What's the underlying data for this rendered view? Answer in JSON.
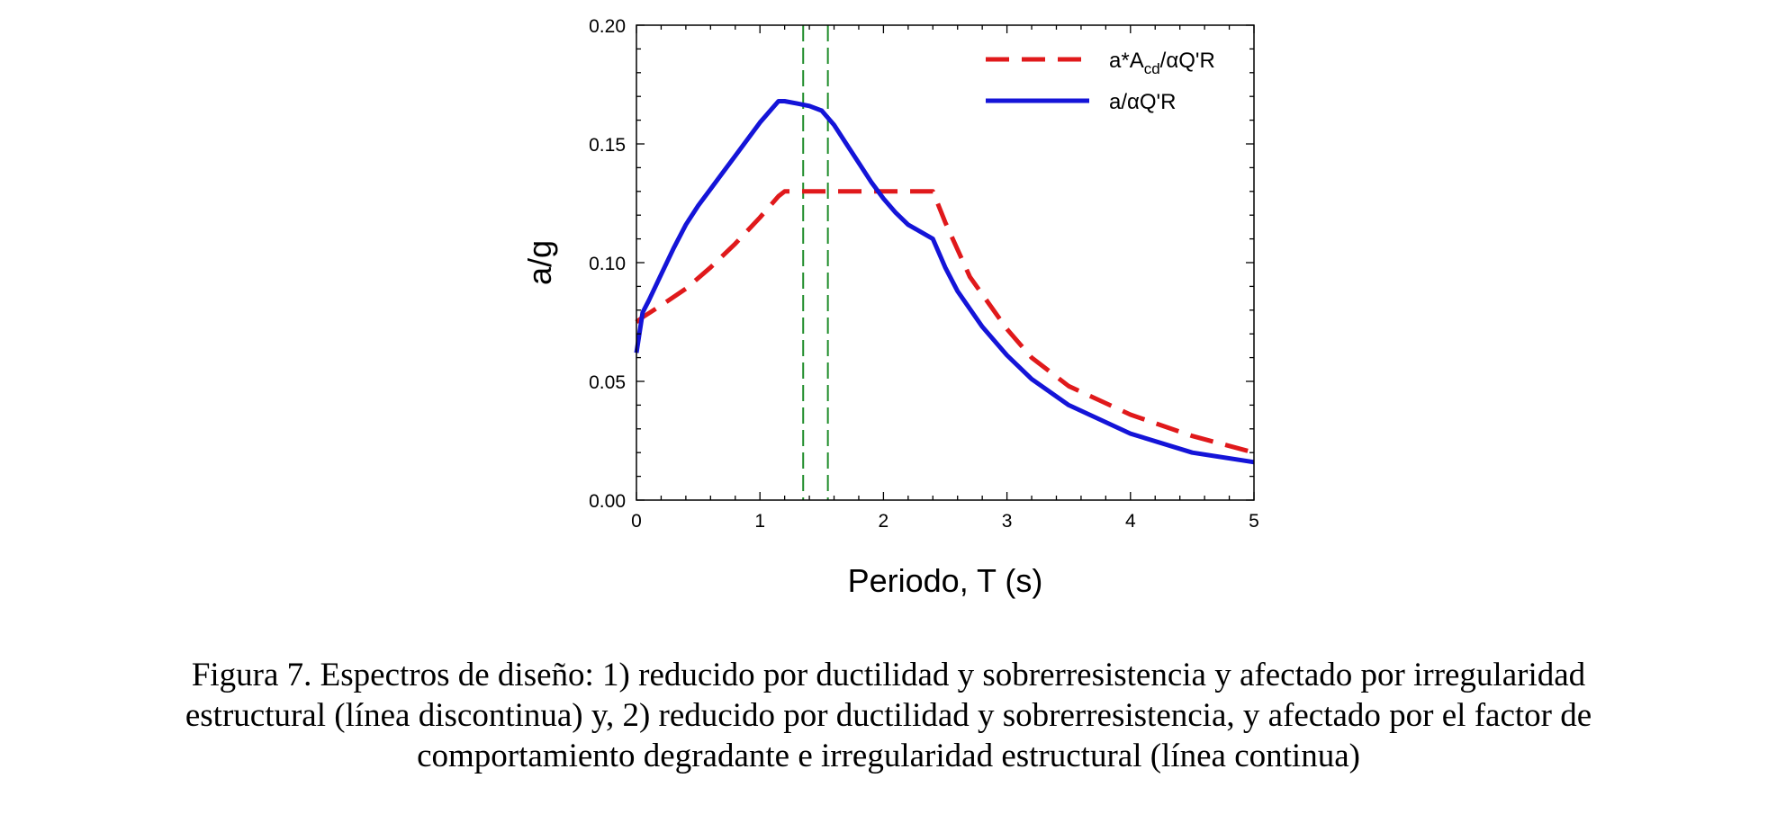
{
  "chart_data": {
    "type": "line",
    "xlabel": "Periodo, T (s)",
    "ylabel": "a/g",
    "xlim": [
      0,
      5
    ],
    "ylim": [
      0,
      0.2
    ],
    "x_ticks": [
      0,
      1,
      2,
      3,
      4,
      5
    ],
    "x_tick_labels": [
      "0",
      "1",
      "2",
      "3",
      "4",
      "5"
    ],
    "y_ticks": [
      0,
      0.05,
      0.1,
      0.15,
      0.2
    ],
    "y_tick_labels": [
      "0.00",
      "0.05",
      "0.10",
      "0.15",
      "0.20"
    ],
    "legend_position": "top-right",
    "series": [
      {
        "name": "a*Acd/αQ'R",
        "legend_parts": [
          "a*A",
          "cd",
          "/αQ'R"
        ],
        "style": "dashed",
        "color": "#e0191b",
        "x": [
          0.0,
          0.05,
          0.2,
          0.4,
          0.6,
          0.8,
          1.0,
          1.15,
          1.2,
          1.5,
          2.0,
          2.2,
          2.4,
          2.5,
          2.7,
          3.0,
          3.2,
          3.5,
          4.0,
          4.5,
          5.0
        ],
        "y": [
          0.075,
          0.077,
          0.082,
          0.089,
          0.098,
          0.108,
          0.119,
          0.128,
          0.13,
          0.13,
          0.13,
          0.13,
          0.13,
          0.117,
          0.094,
          0.072,
          0.06,
          0.048,
          0.036,
          0.027,
          0.02
        ]
      },
      {
        "name": "a/αQ'R",
        "legend_parts": [
          "a/αQ'R"
        ],
        "style": "solid",
        "color": "#1414d8",
        "x": [
          0.0,
          0.05,
          0.1,
          0.2,
          0.3,
          0.4,
          0.5,
          0.6,
          0.7,
          0.8,
          0.9,
          1.0,
          1.1,
          1.15,
          1.2,
          1.3,
          1.4,
          1.5,
          1.6,
          1.7,
          1.8,
          1.9,
          2.0,
          2.1,
          2.2,
          2.3,
          2.4,
          2.5,
          2.6,
          2.8,
          3.0,
          3.2,
          3.5,
          4.0,
          4.5,
          5.0
        ],
        "y": [
          0.062,
          0.079,
          0.084,
          0.095,
          0.106,
          0.116,
          0.124,
          0.131,
          0.138,
          0.145,
          0.152,
          0.159,
          0.165,
          0.168,
          0.168,
          0.167,
          0.166,
          0.164,
          0.158,
          0.15,
          0.142,
          0.134,
          0.127,
          0.121,
          0.116,
          0.113,
          0.11,
          0.098,
          0.088,
          0.073,
          0.061,
          0.051,
          0.04,
          0.028,
          0.02,
          0.016
        ]
      }
    ],
    "reference_lines": {
      "orientation": "vertical",
      "style": "dashed",
      "color": "#1f8c2a",
      "x": [
        1.35,
        1.55
      ]
    }
  },
  "caption": {
    "lines": [
      "Figura 7. Espectros de diseño: 1) reducido por ductilidad y sobrerresistencia y afectado por irregularidad",
      "estructural (línea discontinua) y, 2) reducido por ductilidad y sobrerresistencia, y afectado por el factor de",
      "comportamiento degradante e irregularidad estructural (línea continua)"
    ]
  }
}
